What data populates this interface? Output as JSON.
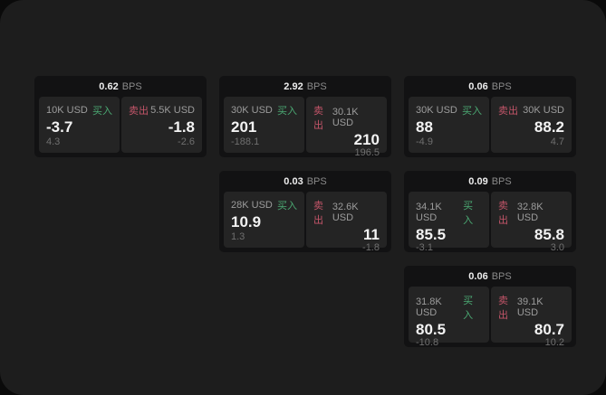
{
  "colors": {
    "buy_green": "#4ba973",
    "sell_red": "#c35569"
  },
  "cards": [
    {
      "row": 1,
      "col": 1,
      "bps_value": "0.62",
      "bps_unit": "BPS",
      "buy": {
        "amount": "10K USD",
        "side_label": "买入",
        "price": "-3.7",
        "delta": "4.3"
      },
      "sell": {
        "side_label": "卖出",
        "amount": "5.5K USD",
        "price": "-1.8",
        "delta": "-2.6"
      }
    },
    {
      "row": 1,
      "col": 2,
      "bps_value": "2.92",
      "bps_unit": "BPS",
      "buy": {
        "amount": "30K USD",
        "side_label": "买入",
        "price": "201",
        "delta": "-188.1"
      },
      "sell": {
        "side_label": "卖出",
        "amount": "30.1K USD",
        "price": "210",
        "delta": "196.5"
      }
    },
    {
      "row": 1,
      "col": 3,
      "bps_value": "0.06",
      "bps_unit": "BPS",
      "buy": {
        "amount": "30K USD",
        "side_label": "买入",
        "price": "88",
        "delta": "-4.9"
      },
      "sell": {
        "side_label": "卖出",
        "amount": "30K USD",
        "price": "88.2",
        "delta": "4.7"
      }
    },
    {
      "row": 2,
      "col": 2,
      "bps_value": "0.03",
      "bps_unit": "BPS",
      "buy": {
        "amount": "28K USD",
        "side_label": "买入",
        "price": "10.9",
        "delta": "1.3"
      },
      "sell": {
        "side_label": "卖出",
        "amount": "32.6K USD",
        "price": "11",
        "delta": "-1.8"
      }
    },
    {
      "row": 2,
      "col": 3,
      "bps_value": "0.09",
      "bps_unit": "BPS",
      "buy": {
        "amount": "34.1K USD",
        "side_label": "买入",
        "price": "85.5",
        "delta": "-3.1"
      },
      "sell": {
        "side_label": "卖出",
        "amount": "32.8K USD",
        "price": "85.8",
        "delta": "3.0"
      }
    },
    {
      "row": 3,
      "col": 3,
      "bps_value": "0.06",
      "bps_unit": "BPS",
      "buy": {
        "amount": "31.8K USD",
        "side_label": "买入",
        "price": "80.5",
        "delta": "-10.8"
      },
      "sell": {
        "side_label": "卖出",
        "amount": "39.1K USD",
        "price": "80.7",
        "delta": "10.2"
      }
    }
  ]
}
